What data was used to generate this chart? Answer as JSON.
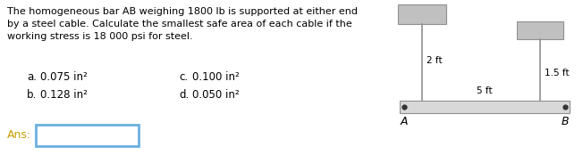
{
  "title_text": "The homogeneous bar AB weighing 1800 lb is supported at either end\nby a steel cable. Calculate the smallest safe area of each cable if the\nworking stress is 18 000 psi for steel.",
  "options_row1_left_letter": "a.",
  "options_row1_left_val": "0.075 in²",
  "options_row1_right_letter": "c.",
  "options_row1_right_val": "0.100 in²",
  "options_row2_left_letter": "b.",
  "options_row2_left_val": "0.128 in²",
  "options_row2_right_letter": "d.",
  "options_row2_right_val": "0.050 in²",
  "ans_label": "Ans:",
  "label_2ft": "2 ft",
  "label_15ft": "1.5 ft",
  "label_5ft": "5 ft",
  "label_A": "A",
  "label_B": "B",
  "bg_color": "#ffffff",
  "text_color": "#000000",
  "ans_text_color": "#c8a000",
  "ans_box_color": "#6ab0e0",
  "bar_color": "#d8d8d8",
  "bar_edge_color": "#909090",
  "block_color": "#c0c0c0",
  "block_edge_color": "#909090",
  "cable_color": "#909090",
  "title_fontsize": 8.0,
  "option_fontsize": 8.5,
  "ans_fontsize": 9.0,
  "diagram_label_fontsize": 7.5
}
